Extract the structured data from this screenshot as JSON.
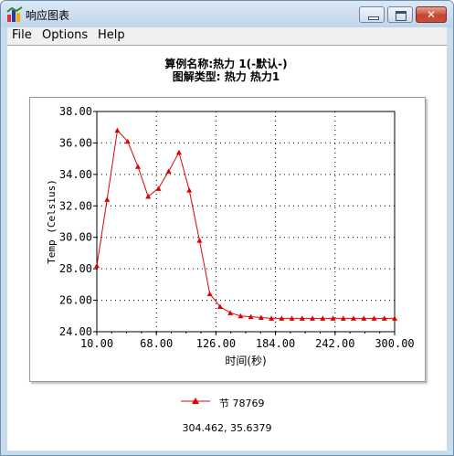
{
  "window": {
    "title": "响应图表"
  },
  "menu": [
    "File",
    "Options",
    "Help"
  ],
  "chart_data": {
    "type": "line",
    "title": "算例名称:热力 1(-默认-)",
    "subtitle": "图解类型: 热力 热力1",
    "xlabel": "时间(秒)",
    "ylabel": "Temp (Celsius)",
    "xlim": [
      10,
      300
    ],
    "ylim": [
      24,
      38
    ],
    "xticks": [
      "10.00",
      "68.00",
      "126.00",
      "184.00",
      "242.00",
      "300.00"
    ],
    "yticks": [
      "24.00",
      "26.00",
      "28.00",
      "30.00",
      "32.00",
      "34.00",
      "36.00",
      "38.00"
    ],
    "grid": true,
    "legend_position": "bottom",
    "color": "#e00000",
    "series": [
      {
        "name": "节 78769",
        "x": [
          10,
          20,
          30,
          40,
          50,
          60,
          70,
          80,
          90,
          100,
          110,
          120,
          130,
          140,
          150,
          160,
          170,
          180,
          190,
          200,
          210,
          220,
          230,
          240,
          250,
          260,
          270,
          280,
          290,
          300
        ],
        "y": [
          28.2,
          32.4,
          36.8,
          36.1,
          34.5,
          32.6,
          33.1,
          34.2,
          35.4,
          33.0,
          29.8,
          26.4,
          25.6,
          25.2,
          25.0,
          24.95,
          24.9,
          24.85,
          24.85,
          24.85,
          24.85,
          24.85,
          24.85,
          24.85,
          24.85,
          24.85,
          24.85,
          24.85,
          24.85,
          24.85
        ]
      }
    ]
  },
  "status": {
    "coordinates": "304.462, 35.6379"
  }
}
